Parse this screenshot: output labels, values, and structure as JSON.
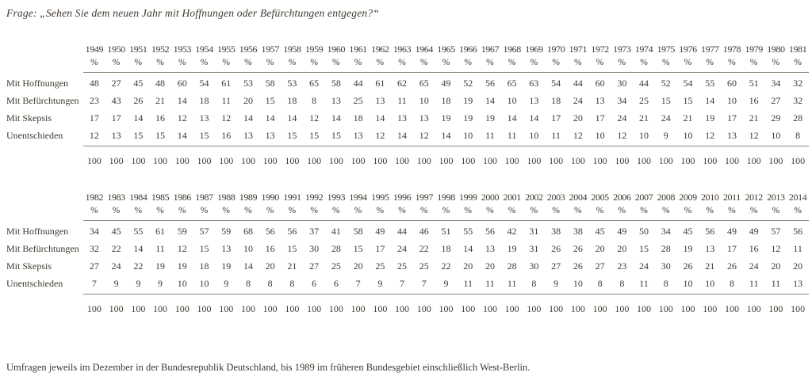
{
  "page": {
    "title": "Frage: „Sehen Sie dem neuen Jahr mit Hoffnungen oder Befürchtungen entgegen?“",
    "footnote": "Umfragen jeweils im Dezember in der Bundesrepublik Deutschland, bis 1989 im früheren Bundesgebiet einschließlich West-Berlin."
  },
  "colors": {
    "ink": "#3f382f",
    "rule": "#938a7d",
    "background": "#ffffff"
  },
  "percent_symbol": "%",
  "row_labels": [
    "Mit Hoffnungen",
    "Mit Befürchtungen",
    "Mit Skepsis",
    "Unentschieden"
  ],
  "chart_data": [
    {
      "type": "table",
      "title": "Neujahrserwartungen 1949–1981",
      "categories": [
        "1949",
        "1950",
        "1951",
        "1952",
        "1953",
        "1954",
        "1955",
        "1956",
        "1957",
        "1958",
        "1959",
        "1960",
        "1961",
        "1962",
        "1963",
        "1964",
        "1965",
        "1966",
        "1967",
        "1968",
        "1969",
        "1970",
        "1971",
        "1972",
        "1973",
        "1974",
        "1975",
        "1976",
        "1977",
        "1978",
        "1979",
        "1980",
        "1981"
      ],
      "unit": "%",
      "series": [
        {
          "name": "Mit Hoffnungen",
          "values": [
            48,
            27,
            45,
            48,
            60,
            54,
            61,
            53,
            58,
            53,
            65,
            58,
            44,
            61,
            62,
            65,
            49,
            52,
            56,
            65,
            63,
            54,
            44,
            60,
            30,
            44,
            52,
            54,
            55,
            60,
            51,
            34,
            32
          ]
        },
        {
          "name": "Mit Befürchtungen",
          "values": [
            23,
            43,
            26,
            21,
            14,
            18,
            11,
            20,
            15,
            18,
            8,
            13,
            25,
            13,
            11,
            10,
            18,
            19,
            14,
            10,
            13,
            18,
            24,
            13,
            34,
            25,
            15,
            15,
            14,
            10,
            16,
            27,
            32
          ]
        },
        {
          "name": "Mit Skepsis",
          "values": [
            17,
            17,
            14,
            16,
            12,
            13,
            12,
            14,
            14,
            14,
            12,
            14,
            18,
            14,
            13,
            13,
            19,
            19,
            19,
            14,
            14,
            17,
            20,
            17,
            24,
            21,
            24,
            21,
            19,
            17,
            21,
            29,
            28
          ]
        },
        {
          "name": "Unentschieden",
          "values": [
            12,
            13,
            15,
            15,
            14,
            15,
            16,
            13,
            13,
            15,
            15,
            15,
            13,
            12,
            14,
            12,
            14,
            10,
            11,
            11,
            10,
            11,
            12,
            10,
            12,
            10,
            9,
            10,
            12,
            13,
            12,
            10,
            8
          ]
        }
      ],
      "totals_row": [
        100,
        100,
        100,
        100,
        100,
        100,
        100,
        100,
        100,
        100,
        100,
        100,
        100,
        100,
        100,
        100,
        100,
        100,
        100,
        100,
        100,
        100,
        100,
        100,
        100,
        100,
        100,
        100,
        100,
        100,
        100,
        100,
        100
      ]
    },
    {
      "type": "table",
      "title": "Neujahrserwartungen 1982–2014",
      "categories": [
        "1982",
        "1983",
        "1984",
        "1985",
        "1986",
        "1987",
        "1988",
        "1989",
        "1990",
        "1991",
        "1992",
        "1993",
        "1994",
        "1995",
        "1996",
        "1997",
        "1998",
        "1999",
        "2000",
        "2001",
        "2002",
        "2003",
        "2004",
        "2005",
        "2006",
        "2007",
        "2008",
        "2009",
        "2010",
        "2011",
        "2012",
        "2013",
        "2014"
      ],
      "unit": "%",
      "series": [
        {
          "name": "Mit Hoffnungen",
          "values": [
            34,
            45,
            55,
            61,
            59,
            57,
            59,
            68,
            56,
            56,
            37,
            41,
            58,
            49,
            44,
            46,
            51,
            55,
            56,
            42,
            31,
            38,
            38,
            45,
            49,
            50,
            34,
            45,
            56,
            49,
            49,
            57,
            56
          ]
        },
        {
          "name": "Mit Befürchtungen",
          "values": [
            32,
            22,
            14,
            11,
            12,
            15,
            13,
            10,
            16,
            15,
            30,
            28,
            15,
            17,
            24,
            22,
            18,
            14,
            13,
            19,
            31,
            26,
            26,
            20,
            20,
            15,
            28,
            19,
            13,
            17,
            16,
            12,
            11
          ]
        },
        {
          "name": "Mit Skepsis",
          "values": [
            27,
            24,
            22,
            19,
            19,
            18,
            19,
            14,
            20,
            21,
            27,
            25,
            20,
            25,
            25,
            25,
            22,
            20,
            20,
            28,
            30,
            27,
            26,
            27,
            23,
            24,
            30,
            26,
            21,
            26,
            24,
            20,
            20
          ]
        },
        {
          "name": "Unentschieden",
          "values": [
            7,
            9,
            9,
            9,
            10,
            10,
            9,
            8,
            8,
            8,
            6,
            6,
            7,
            9,
            7,
            7,
            9,
            11,
            11,
            11,
            8,
            9,
            10,
            8,
            8,
            11,
            8,
            10,
            10,
            8,
            11,
            11,
            13
          ]
        }
      ],
      "totals_row": [
        100,
        100,
        100,
        100,
        100,
        100,
        100,
        100,
        100,
        100,
        100,
        100,
        100,
        100,
        100,
        100,
        100,
        100,
        100,
        100,
        100,
        100,
        100,
        100,
        100,
        100,
        100,
        100,
        100,
        100,
        100,
        100,
        100
      ]
    }
  ]
}
